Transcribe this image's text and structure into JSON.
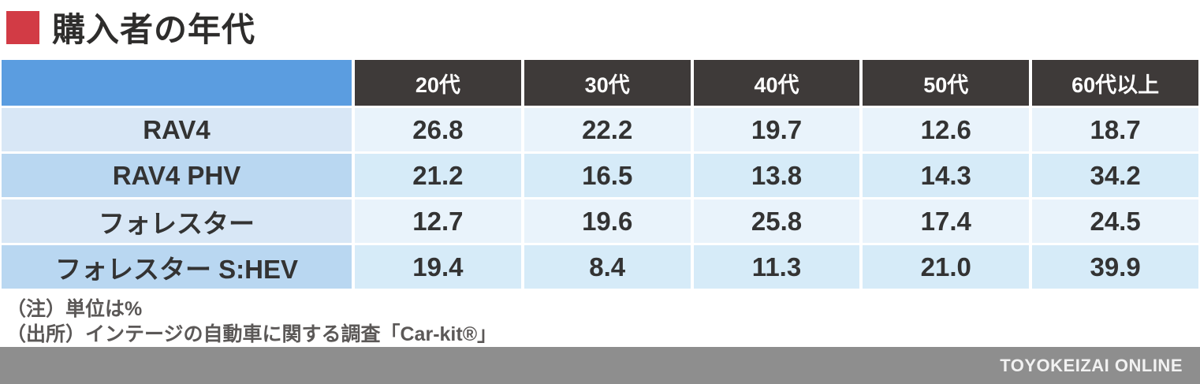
{
  "title": {
    "text": "購入者の年代"
  },
  "table": {
    "columns": [
      "20代",
      "30代",
      "40代",
      "50代",
      "60代以上"
    ],
    "rows": [
      {
        "label": "RAV4",
        "values": [
          "26.8",
          "22.2",
          "19.7",
          "12.6",
          "18.7"
        ]
      },
      {
        "label": "RAV4 PHV",
        "values": [
          "21.2",
          "16.5",
          "13.8",
          "14.3",
          "34.2"
        ]
      },
      {
        "label": "フォレスター",
        "values": [
          "12.7",
          "19.6",
          "25.8",
          "17.4",
          "24.5"
        ]
      },
      {
        "label": "フォレスター S:HEV",
        "values": [
          "19.4",
          "8.4",
          "11.3",
          "21.0",
          "39.9"
        ]
      }
    ]
  },
  "notes": [
    "（注）単位は%",
    "（出所）インテージの自動車に関する調査「Car-kit®」"
  ],
  "footer": {
    "brand": "TOYOKEIZAI ONLINE"
  },
  "colors": {
    "title_bullet": "#d23b45",
    "corner_cell": "#5b9de0",
    "column_header_bg": "#3e3a39",
    "row_label_odd": "#d8e7f6",
    "row_label_even": "#b9d7f1",
    "value_cell_odd": "#e9f3fb",
    "value_cell_even": "#d6ebf8",
    "footer_bar": "#8e8e8e"
  },
  "chart_data": {
    "type": "table",
    "title": "購入者の年代",
    "categories": [
      "20代",
      "30代",
      "40代",
      "50代",
      "60代以上"
    ],
    "series": [
      {
        "name": "RAV4",
        "values": [
          26.8,
          22.2,
          19.7,
          12.6,
          18.7
        ]
      },
      {
        "name": "RAV4 PHV",
        "values": [
          21.2,
          16.5,
          13.8,
          14.3,
          34.2
        ]
      },
      {
        "name": "フォレスター",
        "values": [
          12.7,
          19.6,
          25.8,
          17.4,
          24.5
        ]
      },
      {
        "name": "フォレスター S:HEV",
        "values": [
          19.4,
          8.4,
          11.3,
          21.0,
          39.9
        ]
      }
    ],
    "unit": "%",
    "source": "インテージの自動車に関する調査「Car-kit®」",
    "legend_position": "none",
    "grid": false
  }
}
